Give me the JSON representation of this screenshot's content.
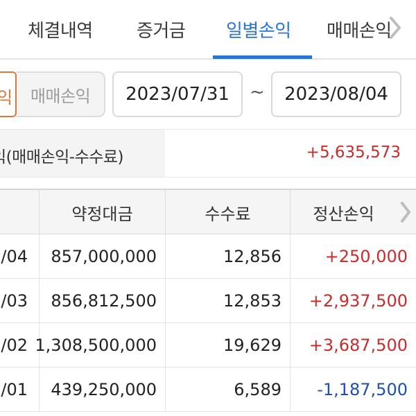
{
  "tabs": [
    {
      "label": "체결내역",
      "active": false
    },
    {
      "label": "증거금",
      "active": false
    },
    {
      "label": "일별손익",
      "active": true
    },
    {
      "label": "매매손익",
      "active": false
    }
  ],
  "filter": {
    "left_segment_partial": "익",
    "segment_label": "매매손익",
    "date_start": "2023/07/31",
    "tilde": "~",
    "date_end": "2023/08/04"
  },
  "summary": {
    "label": "익(매매손익-수수료)",
    "value": "+5,635,573"
  },
  "table": {
    "headers": [
      "",
      "약정대금",
      "수수료",
      "정산손익"
    ],
    "rows": [
      {
        "date": "/04",
        "amount": "857,000,000",
        "fee": "12,856",
        "pnl": "+250,000",
        "sign": "pos"
      },
      {
        "date": "/03",
        "amount": "856,812,500",
        "fee": "12,853",
        "pnl": "+2,937,500",
        "sign": "pos"
      },
      {
        "date": "/02",
        "amount": "1,308,500,000",
        "fee": "19,629",
        "pnl": "+3,687,500",
        "sign": "pos"
      },
      {
        "date": "/01",
        "amount": "439,250,000",
        "fee": "6,589",
        "pnl": "-1,187,500",
        "sign": "neg"
      }
    ]
  },
  "colors": {
    "accent": "#2a74d8",
    "positive": "#cc2b2b",
    "negative": "#1f4fb0",
    "segment_border": "#e0763a"
  },
  "icons": {
    "tab_scroll": "chevron-right-icon",
    "column_scroll": "chevron-right-icon"
  }
}
